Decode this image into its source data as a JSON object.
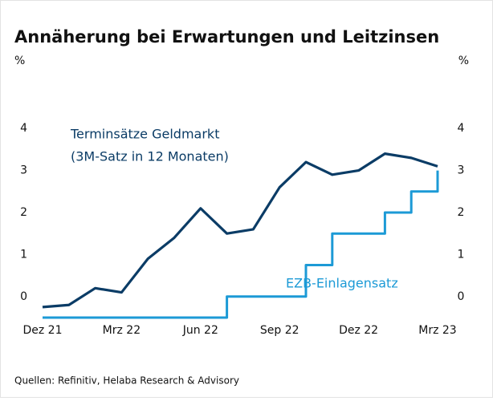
{
  "chart_data": {
    "type": "line",
    "title": "Annäherung bei Erwartungen und Leitzinsen",
    "y_label": "%",
    "y2_label": "%",
    "source": "Quellen: Refinitiv, Helaba Research & Advisory",
    "annotations": [
      "Terminsätze Geldmarkt",
      "(3M-Satz in 12 Monaten)",
      "EZB-Einlagensatz"
    ],
    "x": [
      "2021-12",
      "2022-01",
      "2022-02",
      "2022-03",
      "2022-04",
      "2022-05",
      "2022-06",
      "2022-07",
      "2022-08",
      "2022-09",
      "2022-10",
      "2022-11",
      "2022-12",
      "2023-01",
      "2023-02",
      "2023-03"
    ],
    "xlim": [
      "2021-12",
      "2023-03"
    ],
    "xticks": [
      {
        "value": "2021-12",
        "label": "Dez 21"
      },
      {
        "value": "2022-03",
        "label": "Mrz 22"
      },
      {
        "value": "2022-06",
        "label": "Jun 22"
      },
      {
        "value": "2022-09",
        "label": "Sep 22"
      },
      {
        "value": "2022-12",
        "label": "Dez 22"
      },
      {
        "value": "2023-03",
        "label": "Mrz 23"
      }
    ],
    "ylim": [
      -0.5,
      4.5
    ],
    "yticks": [
      0,
      1,
      2,
      3,
      4
    ],
    "y2lim": [
      -0.5,
      4.5
    ],
    "y2ticks": [
      0,
      1,
      2,
      3,
      4
    ],
    "series": [
      {
        "name": "Terminsätze Geldmarkt (3M-Satz in 12 Monaten)",
        "color": "#0b3c66",
        "values": [
          -0.25,
          -0.2,
          0.2,
          0.1,
          0.9,
          1.4,
          2.1,
          1.5,
          1.6,
          2.6,
          3.2,
          2.9,
          3.0,
          3.4,
          3.3,
          3.1
        ]
      },
      {
        "name": "EZB-Einlagensatz",
        "color": "#1c9ad6",
        "axis": "y2",
        "step": true,
        "values": [
          -0.5,
          -0.5,
          -0.5,
          -0.5,
          -0.5,
          -0.5,
          -0.5,
          0,
          0,
          0,
          0.75,
          1.5,
          1.5,
          2,
          2.5,
          3
        ]
      }
    ]
  }
}
